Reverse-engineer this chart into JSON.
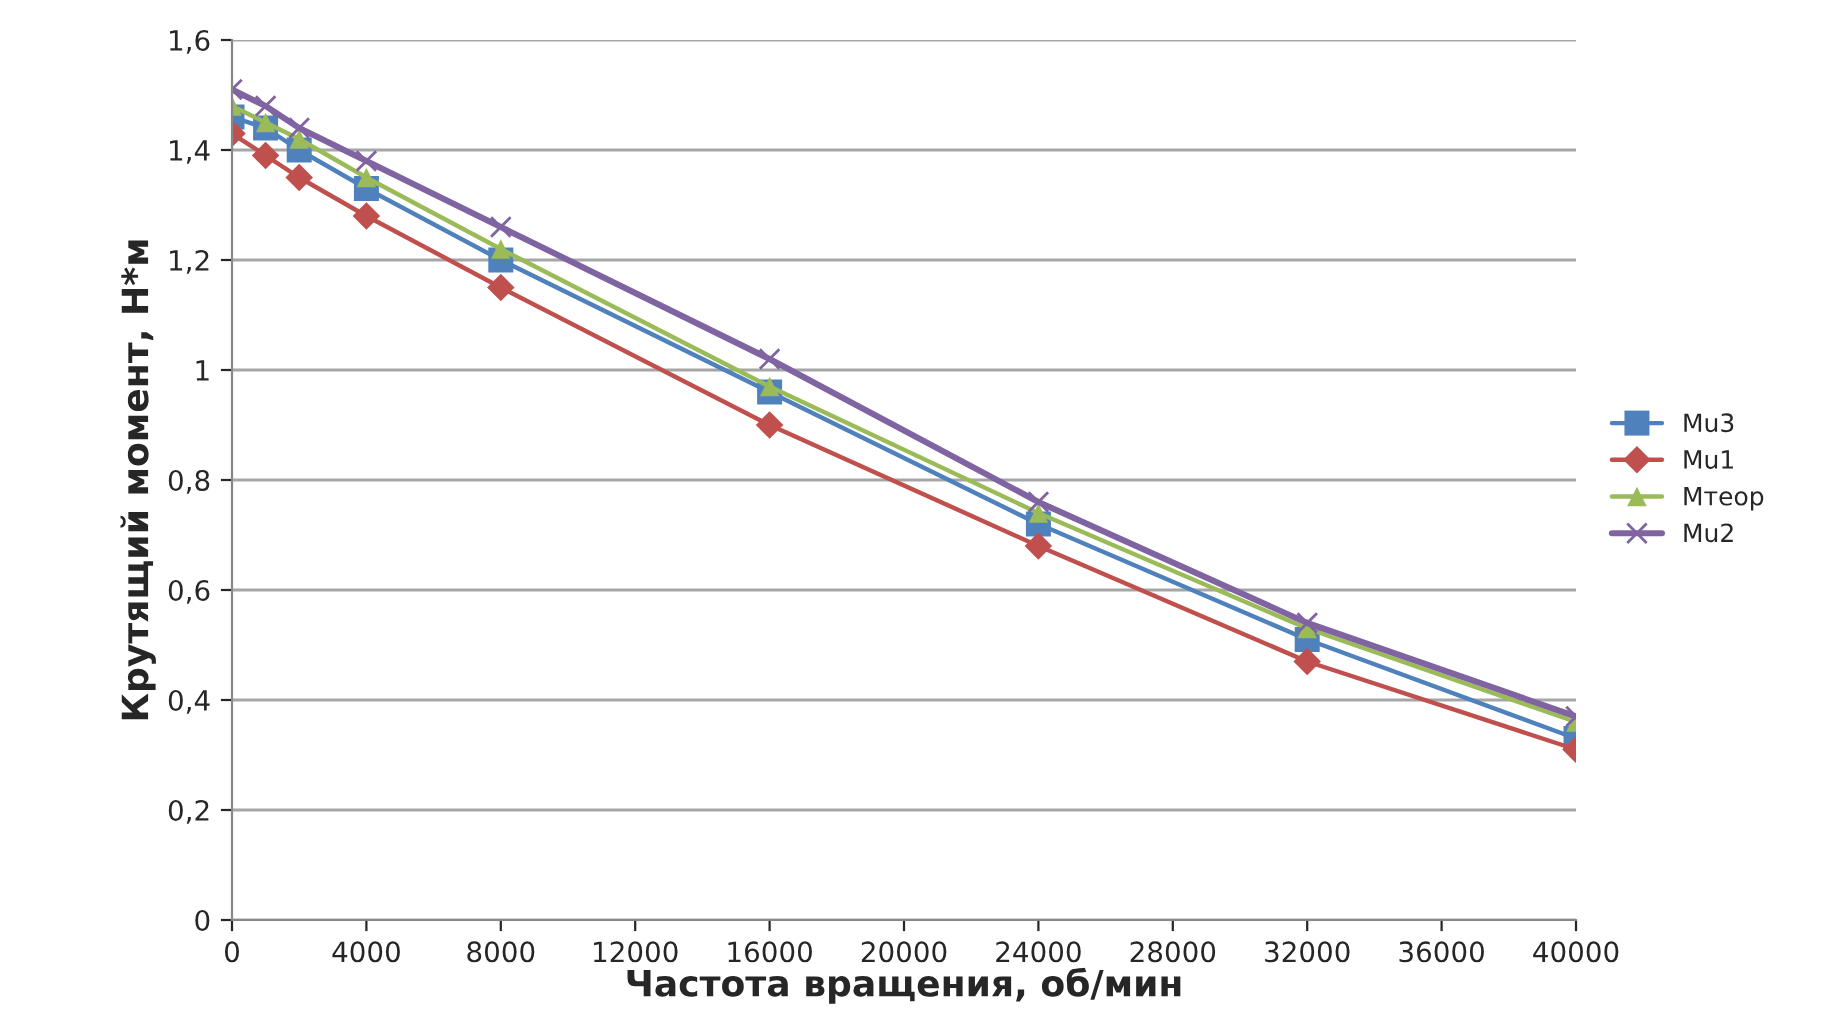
{
  "chart_data": {
    "type": "line",
    "xlabel": "Частота вращения, об/мин",
    "ylabel": "Крутящий момент, Н*м",
    "x": [
      0,
      1000,
      2000,
      4000,
      8000,
      16000,
      24000,
      32000,
      40000
    ],
    "series": [
      {
        "name": "Mu3",
        "color": "#4f81bd",
        "marker": "square",
        "values": [
          1.46,
          1.44,
          1.4,
          1.33,
          1.2,
          0.96,
          0.72,
          0.51,
          0.33
        ]
      },
      {
        "name": "Mu1",
        "color": "#c0504d",
        "marker": "diamond",
        "values": [
          1.43,
          1.39,
          1.35,
          1.28,
          1.15,
          0.9,
          0.68,
          0.47,
          0.31
        ]
      },
      {
        "name": "Mтеор",
        "color": "#9bbb59",
        "marker": "triangle",
        "values": [
          1.48,
          1.45,
          1.42,
          1.35,
          1.22,
          0.97,
          0.74,
          0.53,
          0.36
        ]
      },
      {
        "name": "Mu2",
        "color": "#8064a2",
        "marker": "cross",
        "values": [
          1.51,
          1.48,
          1.44,
          1.38,
          1.26,
          1.02,
          0.76,
          0.54,
          0.37
        ]
      }
    ],
    "xlim": [
      0,
      40000
    ],
    "xticks": [
      0,
      4000,
      8000,
      12000,
      16000,
      20000,
      24000,
      28000,
      32000,
      36000,
      40000
    ],
    "ylim": [
      0,
      1.6
    ],
    "yticks": [
      {
        "value": 0,
        "label": "0"
      },
      {
        "value": 0.2,
        "label": "0,2"
      },
      {
        "value": 0.4,
        "label": "0,4"
      },
      {
        "value": 0.6,
        "label": "0,6"
      },
      {
        "value": 0.8,
        "label": "0,8"
      },
      {
        "value": 1,
        "label": "1"
      },
      {
        "value": 1.2,
        "label": "1,2"
      },
      {
        "value": 1.4,
        "label": "1,4"
      },
      {
        "value": 1.6,
        "label": "1,6"
      }
    ],
    "grid": "y",
    "legend": "right",
    "line_style": "solid"
  }
}
